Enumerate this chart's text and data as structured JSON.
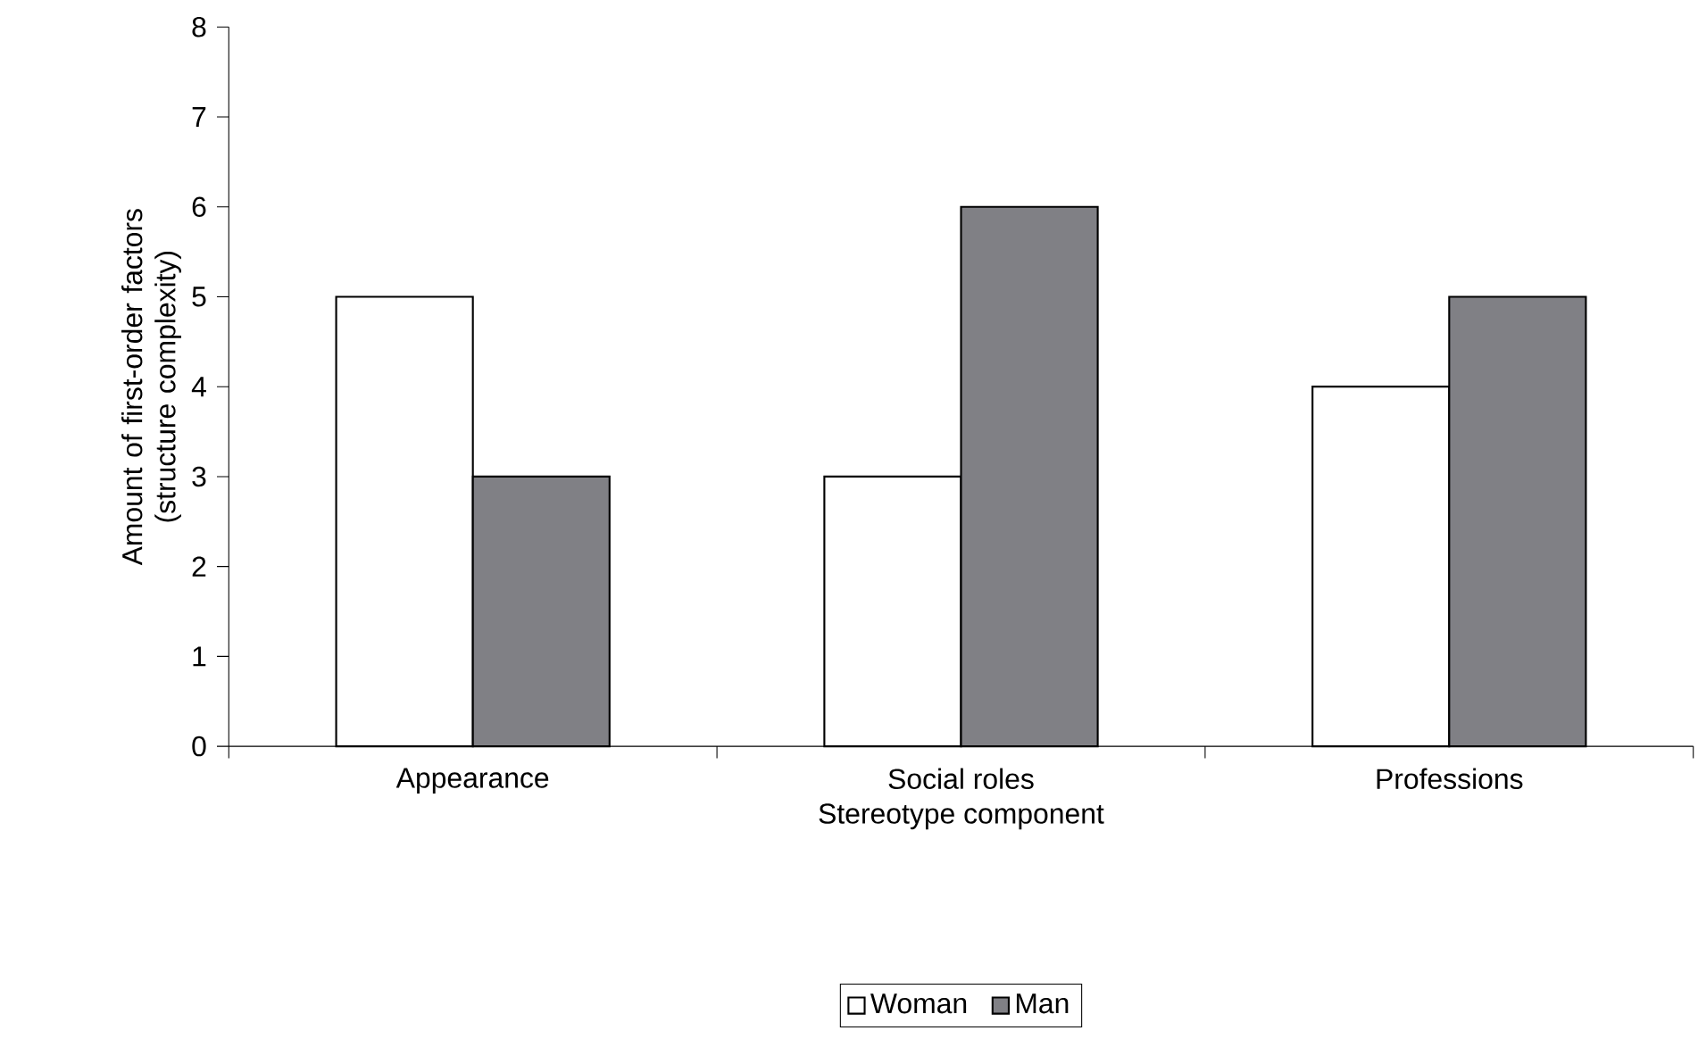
{
  "chart_data": {
    "type": "bar",
    "xlabel": "Stereotype component",
    "ylabel": "Amount of first-order factors (structure complexity)",
    "categories": [
      "Appearance",
      "Social roles",
      "Professions"
    ],
    "series": [
      {
        "name": "Woman",
        "color": "#ffffff",
        "values": [
          5,
          3,
          4
        ]
      },
      {
        "name": "Man",
        "color": "#808085",
        "values": [
          3,
          6,
          5
        ]
      }
    ],
    "ylim": [
      0,
      8
    ],
    "yticks": [
      0,
      1,
      2,
      3,
      4,
      5,
      6,
      7,
      8
    ],
    "grid": false,
    "legend": "bottom"
  }
}
